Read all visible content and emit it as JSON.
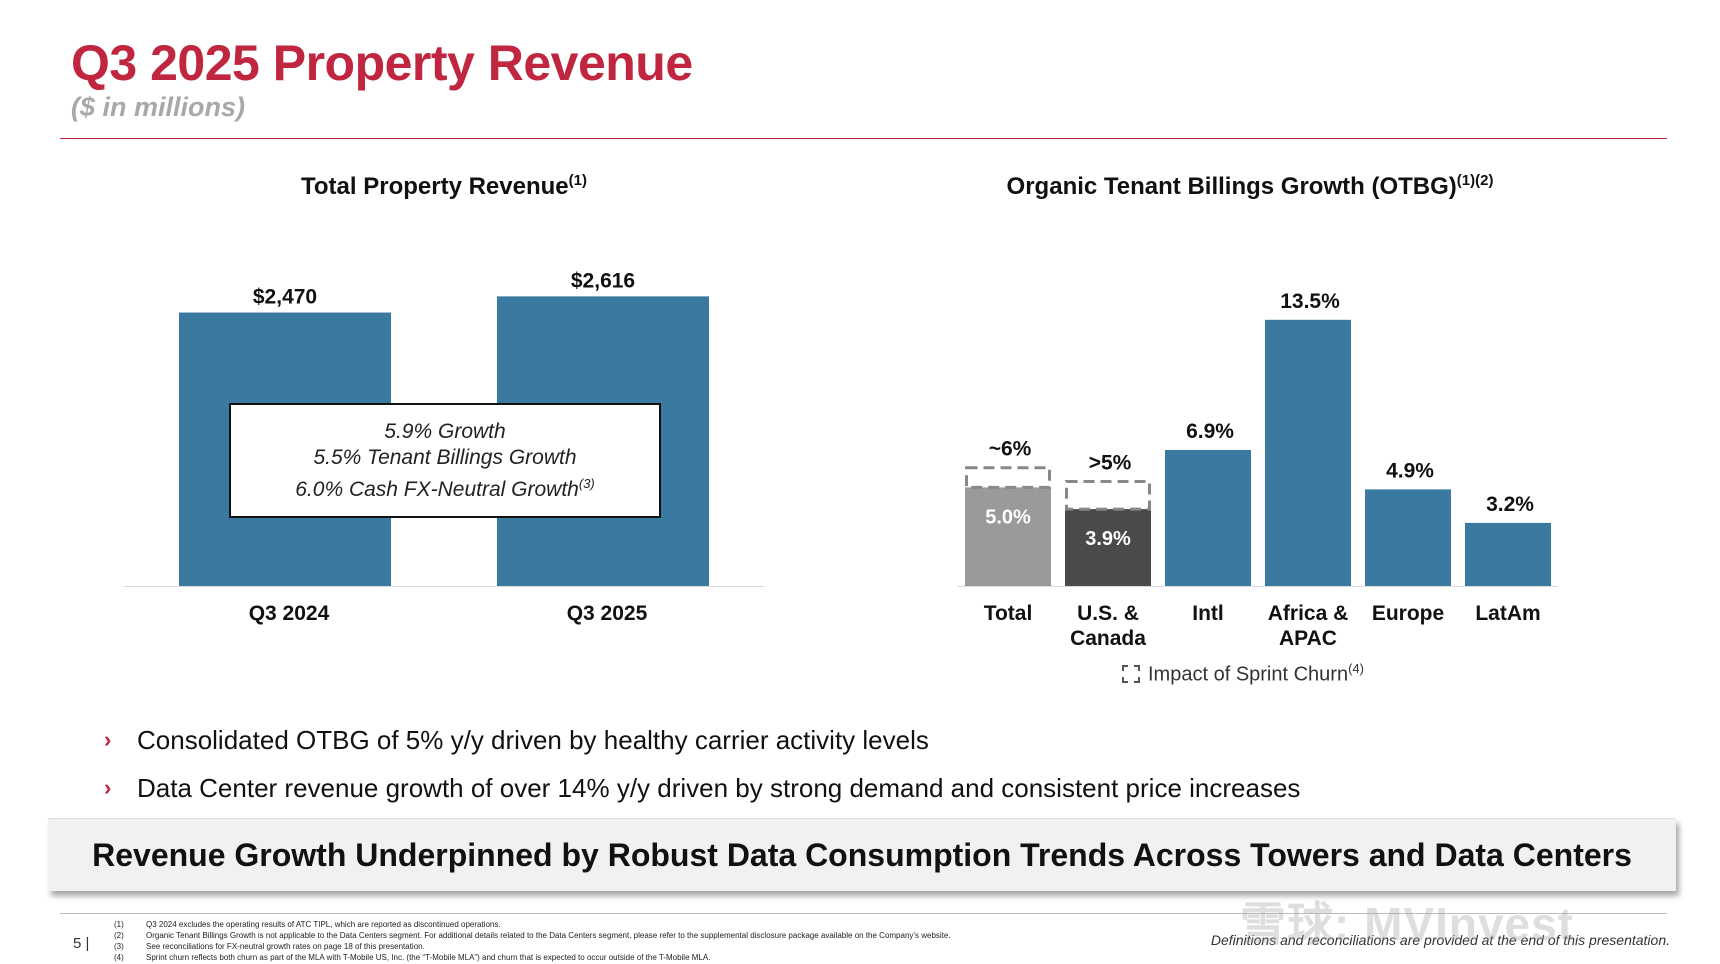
{
  "header": {
    "title": "Q3 2025 Property Revenue",
    "subtitle": "($ in millions)"
  },
  "left_chart": {
    "title": "Total Property Revenue",
    "title_sup": "(1)",
    "growth_box": {
      "line1": "5.9% Growth",
      "line2": "5.5% Tenant Billings Growth",
      "line3": "6.0% Cash FX-Neutral Growth",
      "line3_sup": "(3)"
    }
  },
  "right_chart": {
    "title": "Organic Tenant Billings Growth (OTBG)",
    "title_sup": "(1)(2)",
    "legend_label": "Impact of Sprint Churn",
    "legend_sup": "(4)"
  },
  "chart_data": [
    {
      "type": "bar",
      "title": "Total Property Revenue",
      "categories": [
        "Q3 2024",
        "Q3 2025"
      ],
      "values": [
        2470,
        2616
      ],
      "data_labels": [
        "$2,470",
        "$2,616"
      ],
      "color": "#3b7aa0",
      "ylim": [
        0,
        2800
      ]
    },
    {
      "type": "bar",
      "title": "Organic Tenant Billings Growth (OTBG)",
      "categories": [
        [
          "Total"
        ],
        [
          "U.S. &",
          "Canada"
        ],
        [
          "Intl"
        ],
        [
          "Africa &",
          "APAC"
        ],
        [
          "Europe"
        ],
        [
          "LatAm"
        ]
      ],
      "values": [
        5.0,
        3.9,
        6.9,
        13.5,
        4.9,
        3.2
      ],
      "inside_labels": [
        "5.0%",
        "3.9%",
        "",
        "",
        "",
        ""
      ],
      "top_labels": [
        "~6%",
        ">5%",
        "6.9%",
        "13.5%",
        "4.9%",
        "3.2%"
      ],
      "sprint_churn_impact_totals": [
        6.0,
        5.3,
        null,
        null,
        null,
        null
      ],
      "colors": [
        "#9a9a9a",
        "#4a4a4c",
        "#3b7aa0",
        "#3b7aa0",
        "#3b7aa0",
        "#3b7aa0"
      ],
      "legend": "Impact of Sprint Churn",
      "ylim": [
        0,
        14.2
      ]
    }
  ],
  "bullets": [
    "Consolidated OTBG of 5% y/y driven by healthy carrier activity levels",
    "Data Center revenue growth of over 14% y/y driven by strong demand and consistent price increases"
  ],
  "bullet_marker": "›",
  "banner": "Revenue Growth Underpinned by Robust Data Consumption Trends Across Towers and Data Centers",
  "footer": {
    "page_number": "5 |",
    "footnotes": [
      {
        "num": "(1)",
        "text": "Q3 2024 excludes the operating results of ATC TIPL, which are reported as discontinued operations."
      },
      {
        "num": "(2)",
        "text": "Organic Tenant Billings Growth is not applicable to the Data Centers segment. For additional details related to the Data Centers segment, please refer to the supplemental disclosure package available on the Company’s website."
      },
      {
        "num": "(3)",
        "text": "See reconciliations for FX-neutral growth rates on page 18  of this presentation."
      },
      {
        "num": "(4)",
        "text": "Sprint churn reflects both churn as part of the MLA with T-Mobile US, Inc. (the “T-Mobile MLA”) and churn that is expected to occur outside of the T-Mobile MLA."
      }
    ],
    "definitions_note": "Definitions and reconciliations are provided at the end of this presentation.",
    "watermark": "雪球: MVInvest"
  },
  "colors": {
    "brand_red": "#c0263f",
    "bar_blue": "#3b7aa0",
    "subtitle_gray": "#a8a8a8"
  }
}
